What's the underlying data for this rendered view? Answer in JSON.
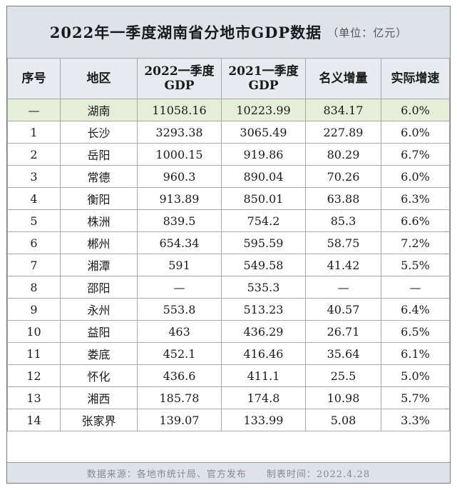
{
  "title": "2022年一季度湖南省分地市GDP数据",
  "unit": "（单位：亿元）",
  "headers": [
    "序号",
    "地区",
    "2022一季度\nGDP",
    "2021一季度\nGDP",
    "名义增量",
    "实际增速"
  ],
  "rows": [
    {
      "idx": "—",
      "region": "湖南",
      "gdp2022": "11058.16",
      "gdp2021": "10223.99",
      "increase": "834.17",
      "growth": "6.0%"
    },
    {
      "idx": "1",
      "region": "长沙",
      "gdp2022": "3293.38",
      "gdp2021": "3065.49",
      "increase": "227.89",
      "growth": "6.0%"
    },
    {
      "idx": "2",
      "region": "岳阳",
      "gdp2022": "1000.15",
      "gdp2021": "919.86",
      "increase": "80.29",
      "growth": "6.7%"
    },
    {
      "idx": "3",
      "region": "常德",
      "gdp2022": "960.3",
      "gdp2021": "890.04",
      "increase": "70.26",
      "growth": "6.0%"
    },
    {
      "idx": "4",
      "region": "衡阳",
      "gdp2022": "913.89",
      "gdp2021": "850.01",
      "increase": "63.88",
      "growth": "6.3%"
    },
    {
      "idx": "5",
      "region": "株洲",
      "gdp2022": "839.5",
      "gdp2021": "754.2",
      "increase": "85.3",
      "growth": "6.6%"
    },
    {
      "idx": "6",
      "region": "郴州",
      "gdp2022": "654.34",
      "gdp2021": "595.59",
      "increase": "58.75",
      "growth": "7.2%"
    },
    {
      "idx": "7",
      "region": "湘潭",
      "gdp2022": "591",
      "gdp2021": "549.58",
      "increase": "41.42",
      "growth": "5.5%"
    },
    {
      "idx": "8",
      "region": "邵阳",
      "gdp2022": "—",
      "gdp2021": "535.3",
      "increase": "—",
      "growth": "—"
    },
    {
      "idx": "9",
      "region": "永州",
      "gdp2022": "553.8",
      "gdp2021": "513.23",
      "increase": "40.57",
      "growth": "6.4%"
    },
    {
      "idx": "10",
      "region": "益阳",
      "gdp2022": "463",
      "gdp2021": "436.29",
      "increase": "26.71",
      "growth": "6.5%"
    },
    {
      "idx": "11",
      "region": "娄底",
      "gdp2022": "452.1",
      "gdp2021": "416.46",
      "increase": "35.64",
      "growth": "6.1%"
    },
    {
      "idx": "12",
      "region": "怀化",
      "gdp2022": "436.6",
      "gdp2021": "411.1",
      "increase": "25.5",
      "growth": "5.0%"
    },
    {
      "idx": "13",
      "region": "湘西",
      "gdp2022": "185.78",
      "gdp2021": "174.8",
      "increase": "10.98",
      "growth": "5.7%"
    },
    {
      "idx": "14",
      "region": "张家界",
      "gdp2022": "139.07",
      "gdp2021": "133.99",
      "increase": "5.08",
      "growth": "3.3%"
    }
  ],
  "footer": {
    "source": "数据来源：各地市统计局、官方发布",
    "date": "制表时间：2022.4.28"
  },
  "colors": {
    "header_bg": "#e7ebef",
    "title_bg": "#dde3e9",
    "total_row_bg": "#e3efd8",
    "border": "#a8a8a8"
  }
}
